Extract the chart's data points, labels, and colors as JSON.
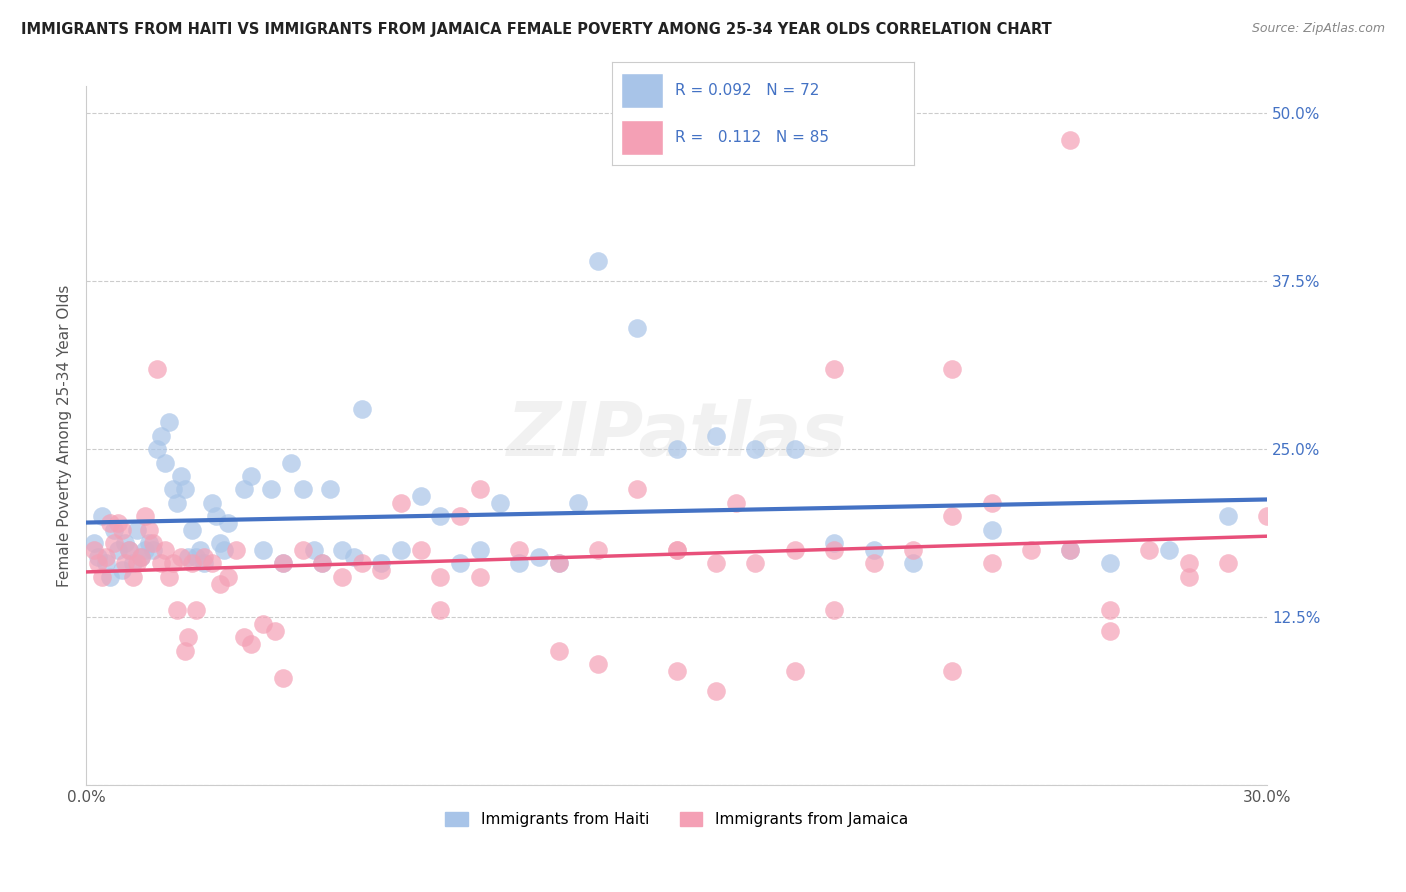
{
  "title": "IMMIGRANTS FROM HAITI VS IMMIGRANTS FROM JAMAICA FEMALE POVERTY AMONG 25-34 YEAR OLDS CORRELATION CHART",
  "source": "Source: ZipAtlas.com",
  "ylabel": "Female Poverty Among 25-34 Year Olds",
  "xlim": [
    0.0,
    0.3
  ],
  "ylim": [
    0.0,
    0.52
  ],
  "xticks": [
    0.0,
    0.05,
    0.1,
    0.15,
    0.2,
    0.25,
    0.3
  ],
  "xtick_labels": [
    "0.0%",
    "",
    "",
    "",
    "",
    "",
    "30.0%"
  ],
  "ytick_positions": [
    0.0,
    0.125,
    0.25,
    0.375,
    0.5
  ],
  "ytick_labels": [
    "",
    "12.5%",
    "25.0%",
    "37.5%",
    "50.0%"
  ],
  "haiti_color": "#a8c4e8",
  "jamaica_color": "#f4a0b5",
  "haiti_line_color": "#4472c4",
  "jamaica_line_color": "#e8507a",
  "haiti_R": 0.092,
  "haiti_N": 72,
  "jamaica_R": 0.112,
  "jamaica_N": 85,
  "legend_label_haiti": "Immigrants from Haiti",
  "legend_label_jamaica": "Immigrants from Jamaica",
  "watermark": "ZIPatlas",
  "haiti_x": [
    0.002,
    0.003,
    0.004,
    0.005,
    0.006,
    0.007,
    0.008,
    0.009,
    0.01,
    0.011,
    0.012,
    0.013,
    0.014,
    0.015,
    0.016,
    0.017,
    0.018,
    0.019,
    0.02,
    0.021,
    0.022,
    0.023,
    0.024,
    0.025,
    0.026,
    0.027,
    0.028,
    0.029,
    0.03,
    0.032,
    0.033,
    0.034,
    0.035,
    0.036,
    0.04,
    0.042,
    0.045,
    0.047,
    0.05,
    0.052,
    0.055,
    0.058,
    0.06,
    0.062,
    0.065,
    0.068,
    0.07,
    0.075,
    0.08,
    0.085,
    0.09,
    0.095,
    0.1,
    0.105,
    0.11,
    0.115,
    0.12,
    0.125,
    0.13,
    0.14,
    0.15,
    0.16,
    0.17,
    0.18,
    0.19,
    0.2,
    0.21,
    0.23,
    0.25,
    0.26,
    0.275,
    0.29
  ],
  "haiti_y": [
    0.18,
    0.17,
    0.2,
    0.165,
    0.155,
    0.19,
    0.175,
    0.16,
    0.18,
    0.175,
    0.165,
    0.19,
    0.17,
    0.175,
    0.18,
    0.175,
    0.25,
    0.26,
    0.24,
    0.27,
    0.22,
    0.21,
    0.23,
    0.22,
    0.17,
    0.19,
    0.17,
    0.175,
    0.165,
    0.21,
    0.2,
    0.18,
    0.175,
    0.195,
    0.22,
    0.23,
    0.175,
    0.22,
    0.165,
    0.24,
    0.22,
    0.175,
    0.165,
    0.22,
    0.175,
    0.17,
    0.28,
    0.165,
    0.175,
    0.215,
    0.2,
    0.165,
    0.175,
    0.21,
    0.165,
    0.17,
    0.165,
    0.21,
    0.39,
    0.34,
    0.25,
    0.26,
    0.25,
    0.25,
    0.18,
    0.175,
    0.165,
    0.19,
    0.175,
    0.165,
    0.175,
    0.2
  ],
  "jamaica_x": [
    0.002,
    0.003,
    0.004,
    0.005,
    0.006,
    0.007,
    0.008,
    0.009,
    0.01,
    0.011,
    0.012,
    0.013,
    0.014,
    0.015,
    0.016,
    0.017,
    0.018,
    0.019,
    0.02,
    0.021,
    0.022,
    0.023,
    0.024,
    0.025,
    0.026,
    0.027,
    0.028,
    0.03,
    0.032,
    0.034,
    0.036,
    0.038,
    0.04,
    0.042,
    0.045,
    0.048,
    0.05,
    0.055,
    0.06,
    0.065,
    0.07,
    0.075,
    0.08,
    0.085,
    0.09,
    0.095,
    0.1,
    0.11,
    0.12,
    0.13,
    0.14,
    0.15,
    0.16,
    0.17,
    0.18,
    0.19,
    0.2,
    0.21,
    0.22,
    0.23,
    0.24,
    0.25,
    0.26,
    0.27,
    0.28,
    0.29,
    0.3,
    0.25,
    0.22,
    0.19,
    0.165,
    0.05,
    0.09,
    0.12,
    0.15,
    0.18,
    0.22,
    0.26,
    0.28,
    0.15,
    0.19,
    0.23,
    0.1,
    0.13,
    0.16
  ],
  "jamaica_y": [
    0.175,
    0.165,
    0.155,
    0.17,
    0.195,
    0.18,
    0.195,
    0.19,
    0.165,
    0.175,
    0.155,
    0.165,
    0.17,
    0.2,
    0.19,
    0.18,
    0.31,
    0.165,
    0.175,
    0.155,
    0.165,
    0.13,
    0.17,
    0.1,
    0.11,
    0.165,
    0.13,
    0.17,
    0.165,
    0.15,
    0.155,
    0.175,
    0.11,
    0.105,
    0.12,
    0.115,
    0.165,
    0.175,
    0.165,
    0.155,
    0.165,
    0.16,
    0.21,
    0.175,
    0.155,
    0.2,
    0.22,
    0.175,
    0.165,
    0.175,
    0.22,
    0.175,
    0.165,
    0.165,
    0.175,
    0.13,
    0.165,
    0.175,
    0.2,
    0.21,
    0.175,
    0.175,
    0.13,
    0.175,
    0.155,
    0.165,
    0.2,
    0.48,
    0.31,
    0.31,
    0.21,
    0.08,
    0.13,
    0.1,
    0.085,
    0.085,
    0.085,
    0.115,
    0.165,
    0.175,
    0.175,
    0.165,
    0.155,
    0.09,
    0.07
  ]
}
